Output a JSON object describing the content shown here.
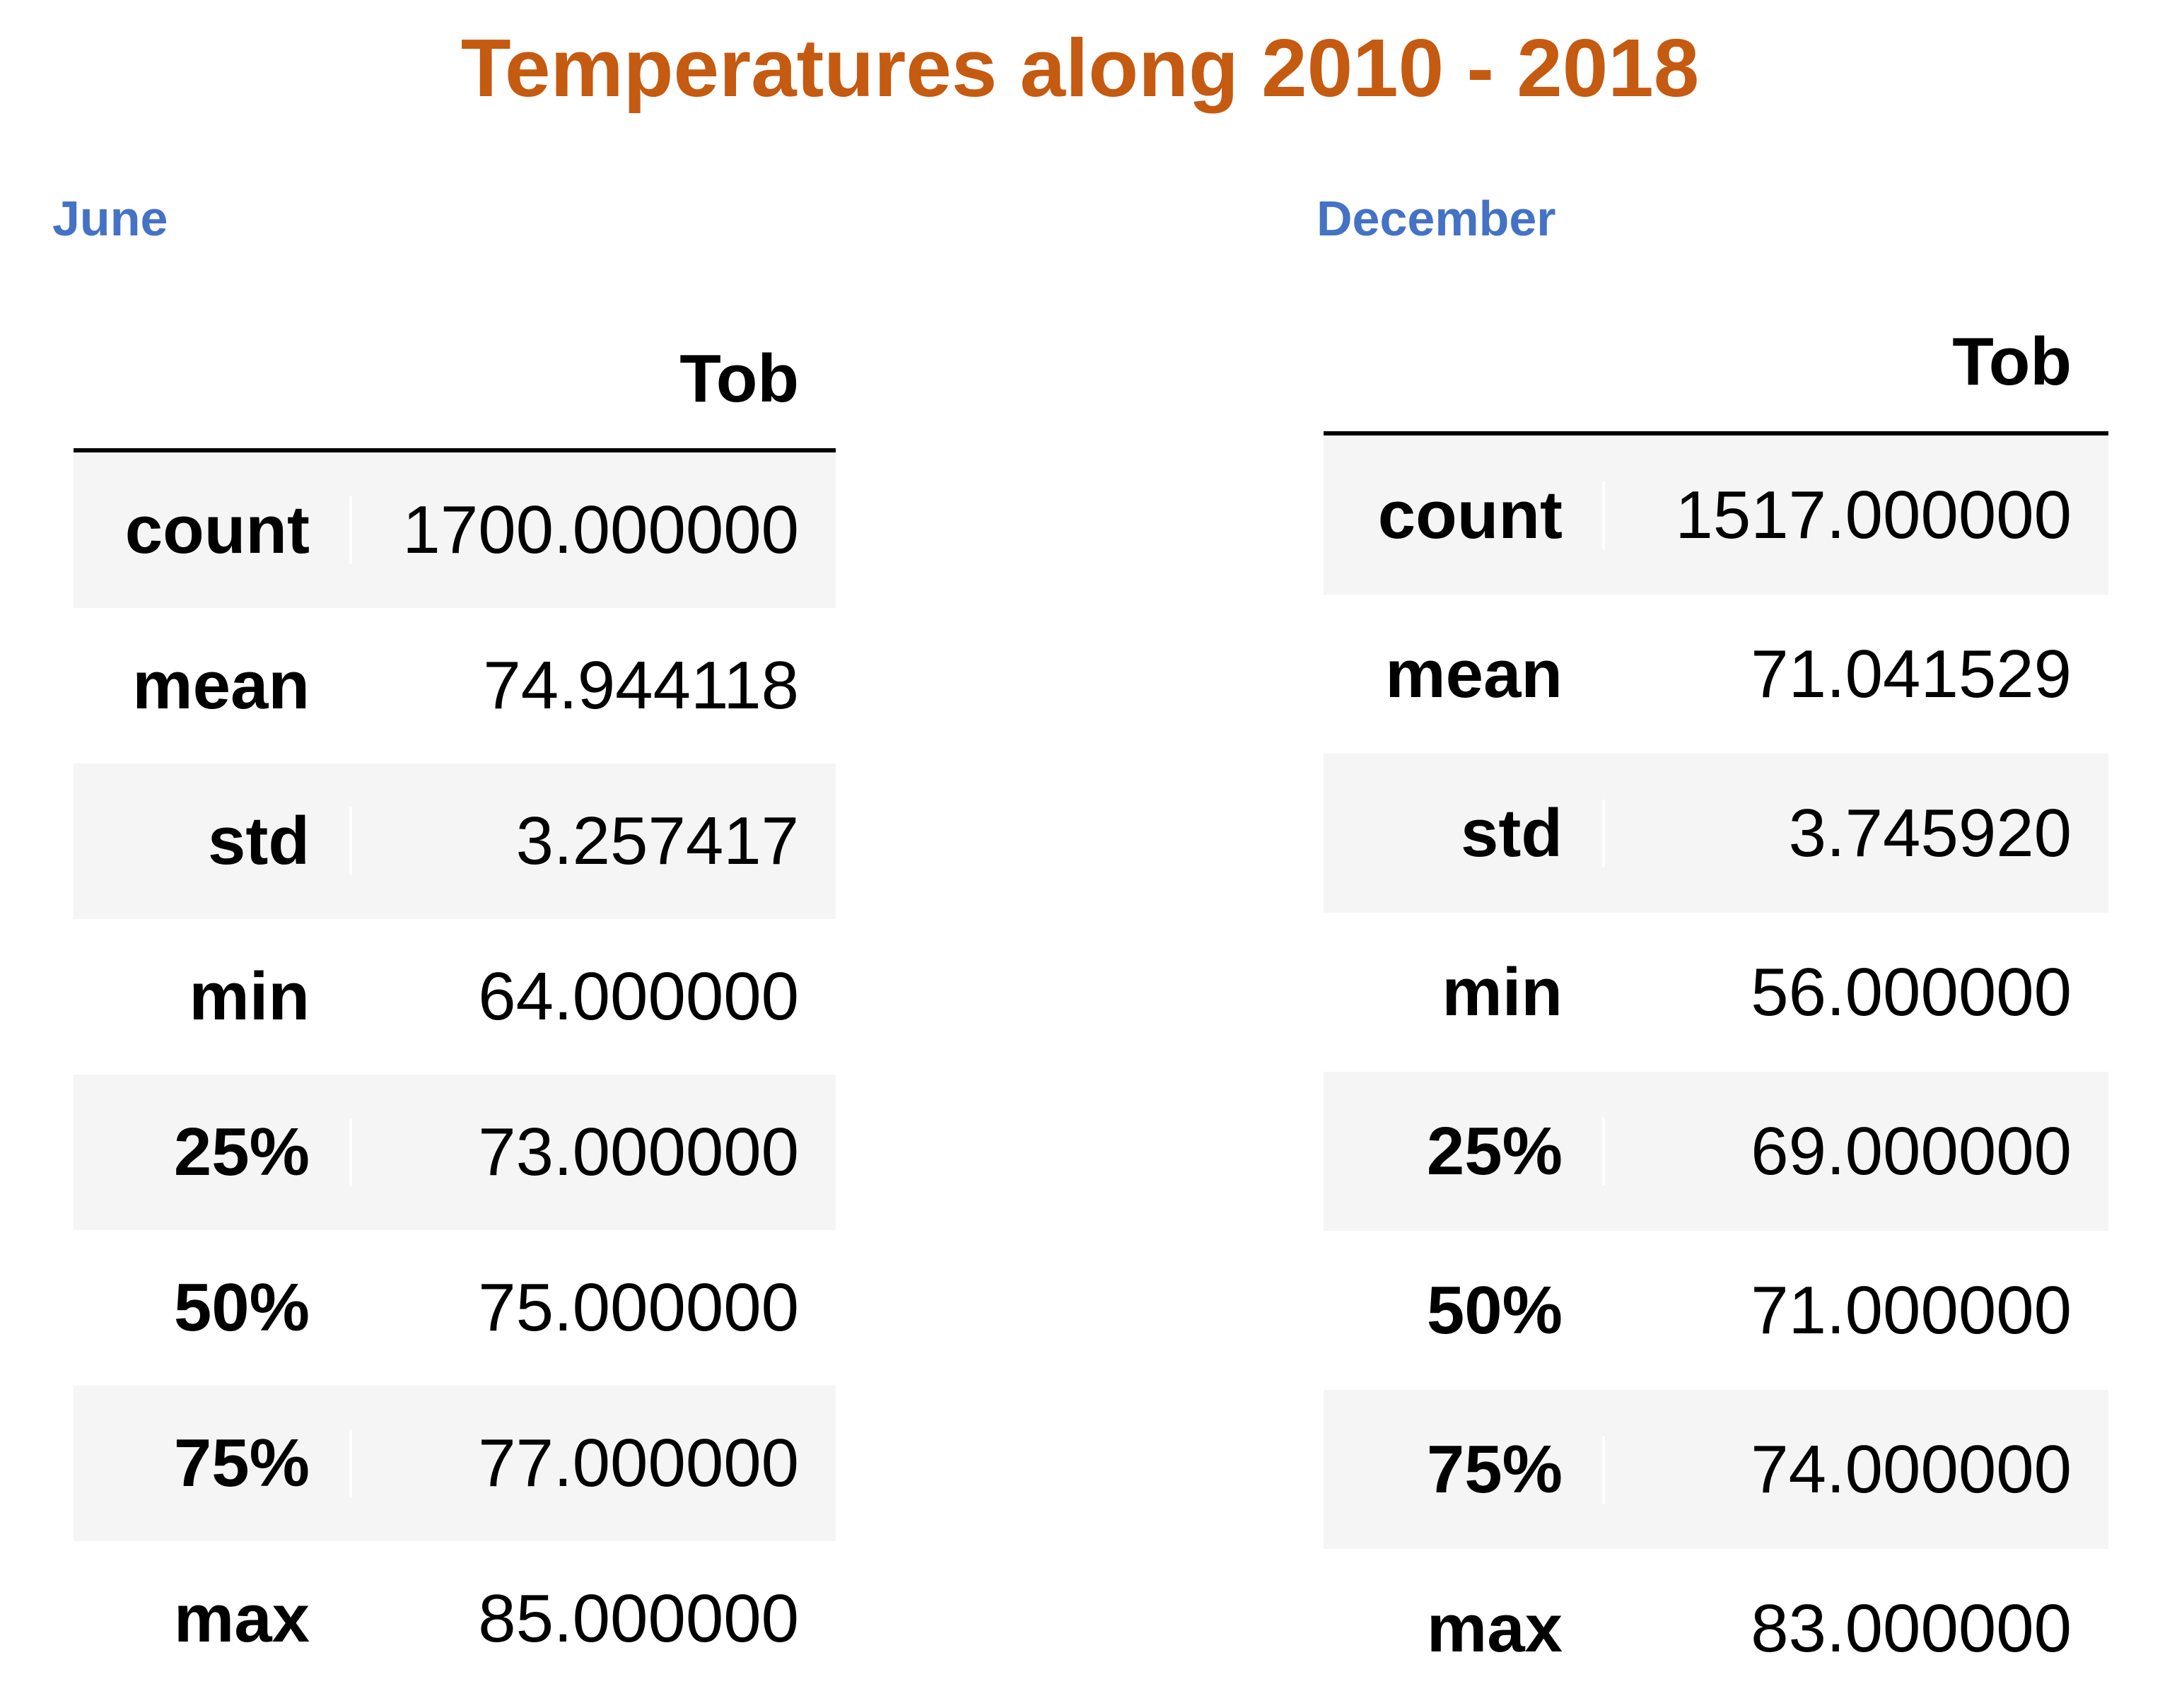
{
  "title": "Temperatures along 2010 - 2018",
  "june": {
    "label": "June",
    "column_header": "Tob",
    "rows": [
      {
        "stat": "count",
        "value": "1700.000000"
      },
      {
        "stat": "mean",
        "value": "74.944118"
      },
      {
        "stat": "std",
        "value": "3.257417"
      },
      {
        "stat": "min",
        "value": "64.000000"
      },
      {
        "stat": "25%",
        "value": "73.000000"
      },
      {
        "stat": "50%",
        "value": "75.000000"
      },
      {
        "stat": "75%",
        "value": "77.000000"
      },
      {
        "stat": "max",
        "value": "85.000000"
      }
    ]
  },
  "december": {
    "label": "December",
    "column_header": "Tob",
    "rows": [
      {
        "stat": "count",
        "value": "1517.000000"
      },
      {
        "stat": "mean",
        "value": "71.041529"
      },
      {
        "stat": "std",
        "value": "3.745920"
      },
      {
        "stat": "min",
        "value": "56.000000"
      },
      {
        "stat": "25%",
        "value": "69.000000"
      },
      {
        "stat": "50%",
        "value": "71.000000"
      },
      {
        "stat": "75%",
        "value": "74.000000"
      },
      {
        "stat": "max",
        "value": "83.000000"
      }
    ]
  },
  "colors": {
    "title": "#c55a11",
    "section_label": "#4472c4",
    "row_shade": "#f5f5f5"
  }
}
